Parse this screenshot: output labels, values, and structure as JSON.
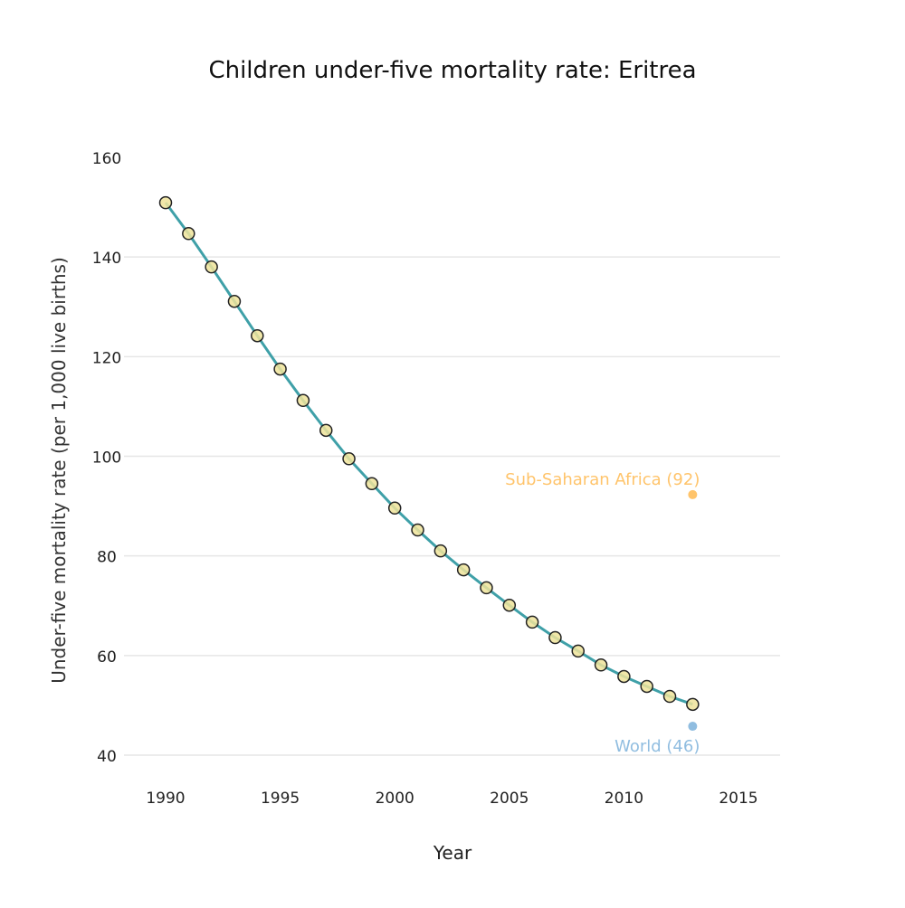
{
  "chart_data": {
    "type": "line",
    "title": "Children under-five mortality rate: Eritrea",
    "xlabel": "Year",
    "ylabel": "Under-five mortality rate (per 1,000 live births)",
    "xlim": [
      1988.2,
      2016.8
    ],
    "ylim": [
      38,
      162
    ],
    "xticks": [
      1990,
      1995,
      2000,
      2005,
      2010,
      2015
    ],
    "yticks": [
      40,
      60,
      80,
      100,
      120,
      140,
      160
    ],
    "grid": "horizontal",
    "x": [
      1990,
      1991,
      1992,
      1993,
      1994,
      1995,
      1996,
      1997,
      1998,
      1999,
      2000,
      2001,
      2002,
      2003,
      2004,
      2005,
      2006,
      2007,
      2008,
      2009,
      2010,
      2011,
      2012,
      2013
    ],
    "y": [
      150.9,
      144.7,
      138.0,
      131.1,
      124.2,
      117.5,
      111.2,
      105.2,
      99.5,
      94.5,
      89.6,
      85.2,
      81.0,
      77.2,
      73.6,
      70.1,
      66.7,
      63.6,
      60.9,
      58.1,
      55.8,
      53.8,
      51.8,
      50.2
    ],
    "line_color": "#3fa0a8",
    "marker_color": "#efe39a",
    "annotations": [
      {
        "label": "Sub-Saharan Africa (92)",
        "x": 2013,
        "y": 92.3,
        "color": "#ffc46b",
        "position": "above-left"
      },
      {
        "label": "World (46)",
        "x": 2013,
        "y": 45.8,
        "color": "#90bde0",
        "position": "below-left"
      }
    ]
  }
}
